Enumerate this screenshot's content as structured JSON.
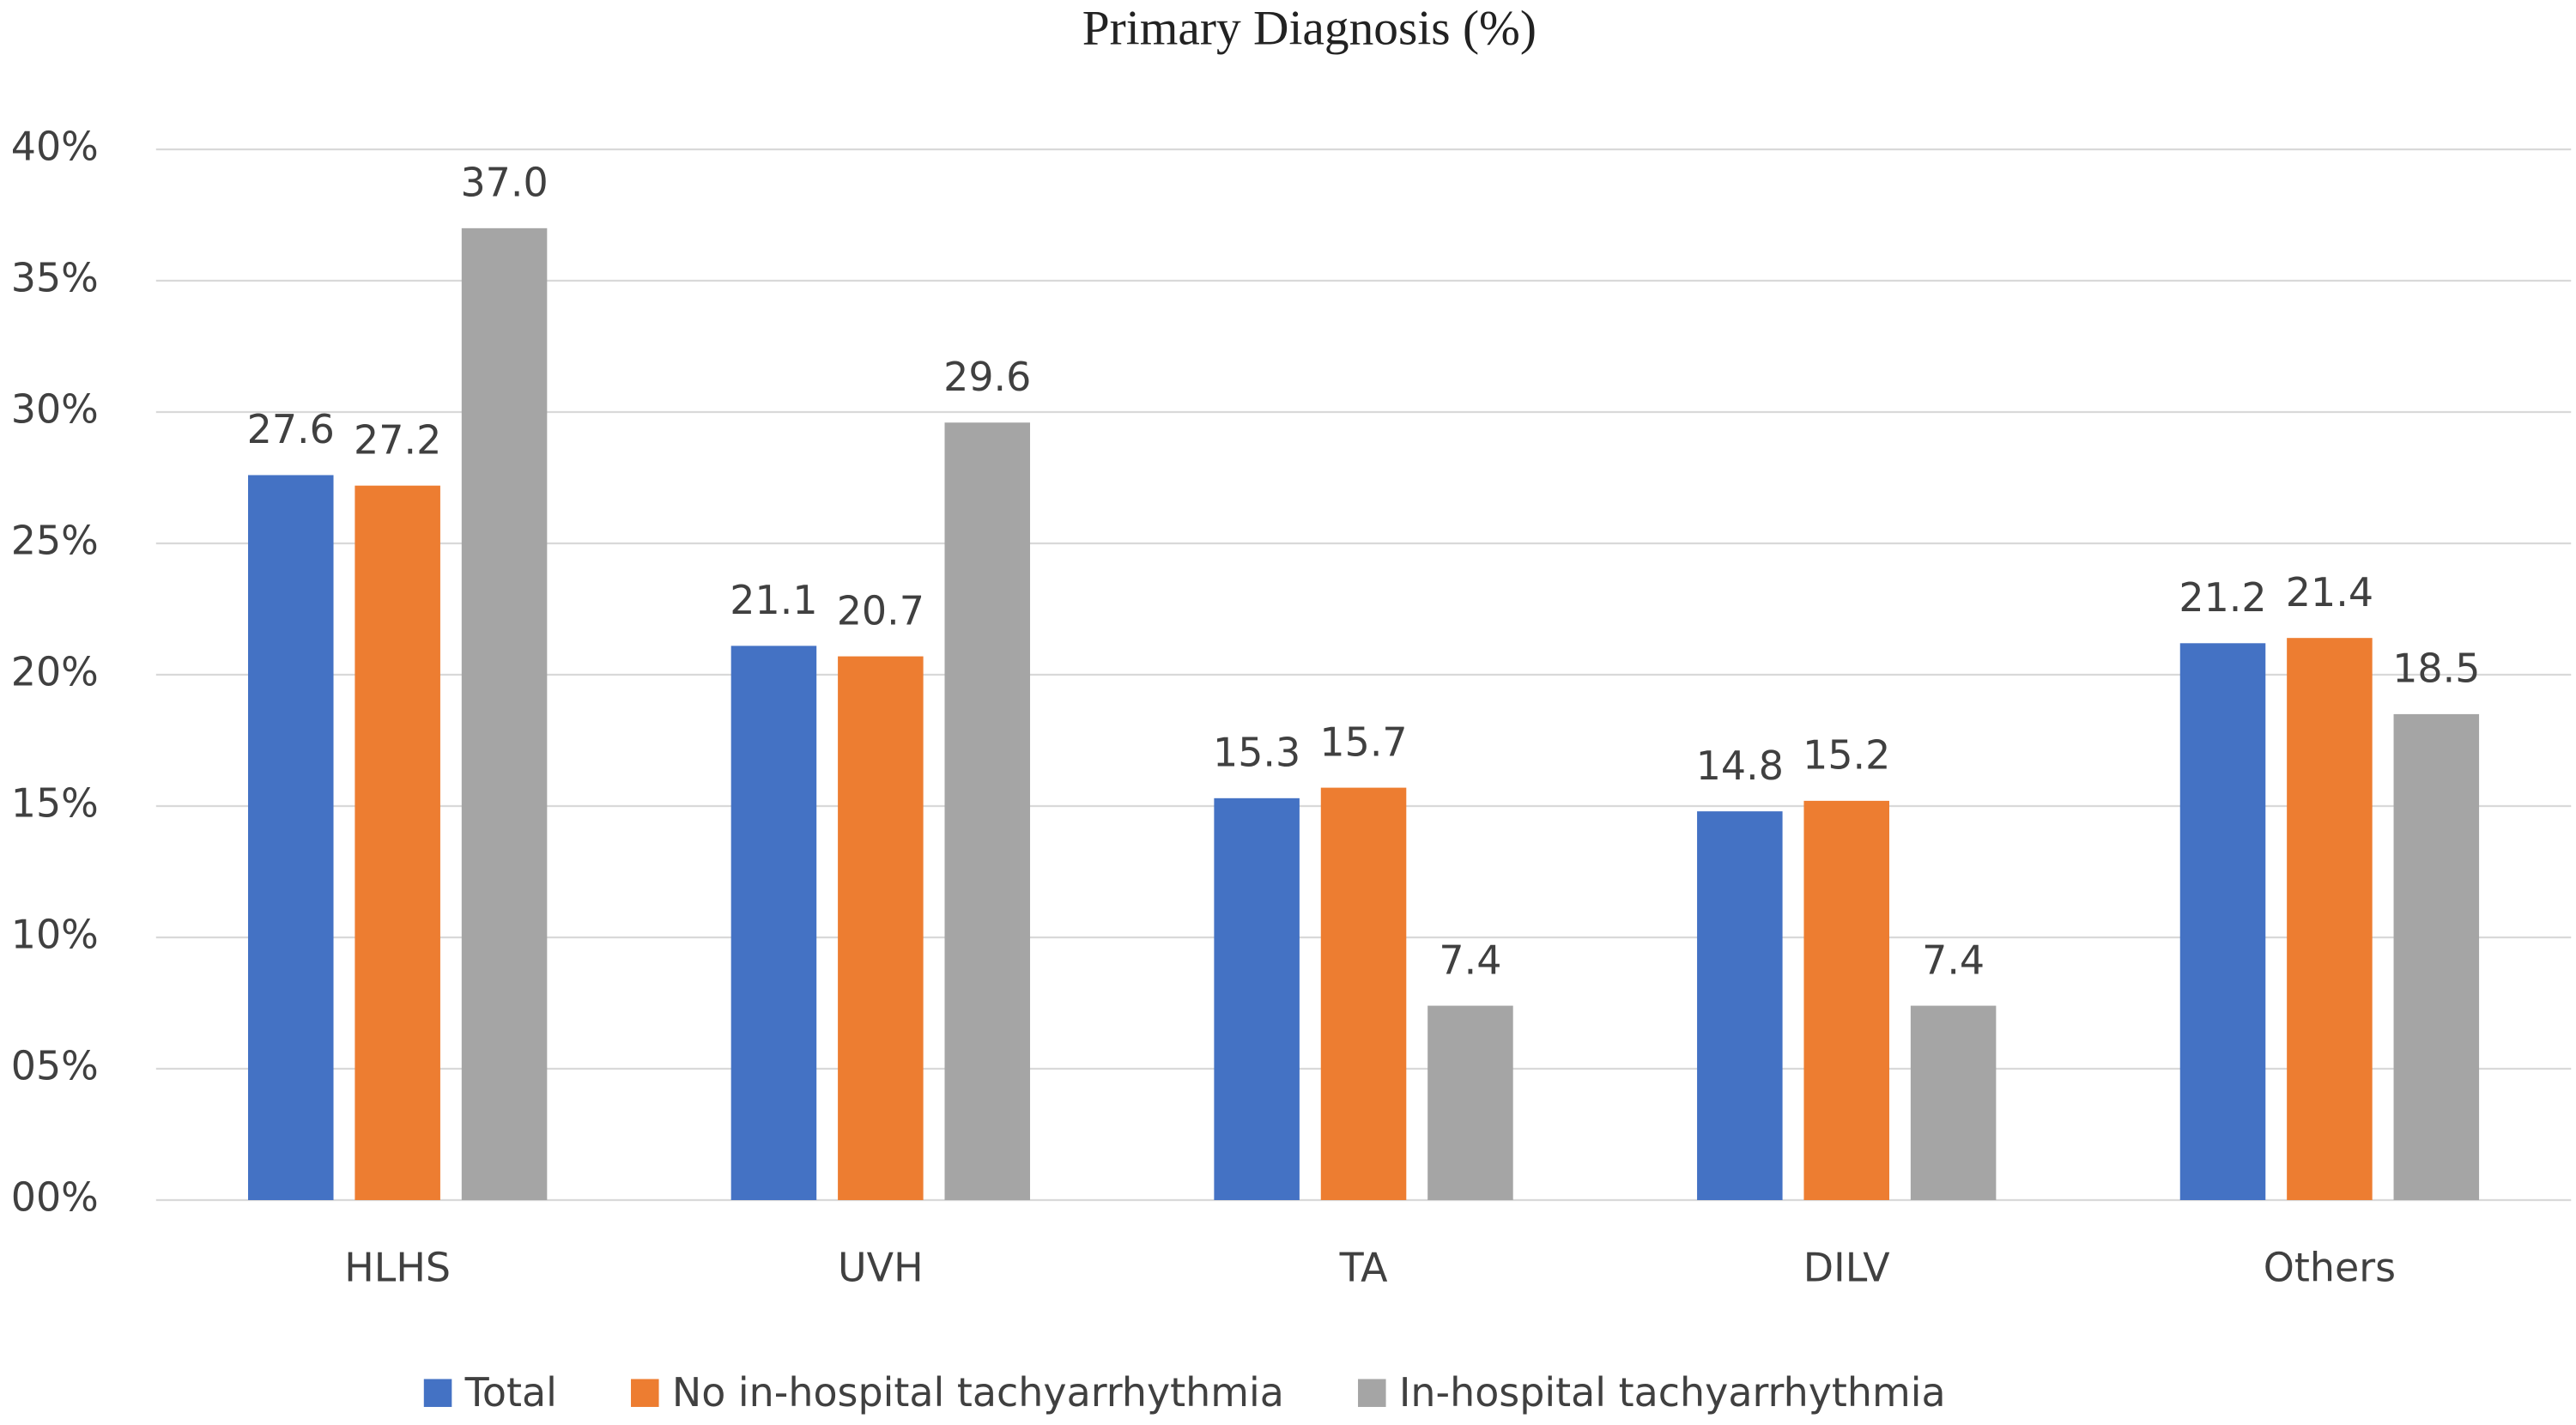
{
  "chart_data": {
    "type": "bar",
    "title": "Primary Diagnosis (%)",
    "categories": [
      "HLHS",
      "UVH",
      "TA",
      "DILV",
      "Others"
    ],
    "series": [
      {
        "name": "Total",
        "color": "#4472c4",
        "values": [
          27.6,
          21.1,
          15.3,
          14.8,
          21.2
        ],
        "value_labels": [
          "27.6",
          "21.1",
          "15.3",
          "14.8",
          "21.2"
        ]
      },
      {
        "name": "No in-hospital tachyarrhythmia",
        "color": "#ed7d31",
        "values": [
          27.2,
          20.7,
          15.7,
          15.2,
          21.4
        ],
        "value_labels": [
          "27.2",
          "20.7",
          "15.7",
          "15.2",
          "21.4"
        ]
      },
      {
        "name": "In-hospital tachyarrhythmia",
        "color": "#a5a5a5",
        "values": [
          37.0,
          29.6,
          7.4,
          7.4,
          18.5
        ],
        "value_labels": [
          "37.0",
          "29.6",
          "7.4",
          "7.4",
          "18.5"
        ]
      }
    ],
    "ylim": [
      0,
      40
    ],
    "yticks": [
      {
        "value": 0,
        "label": "00%"
      },
      {
        "value": 5,
        "label": "05%"
      },
      {
        "value": 10,
        "label": "10%"
      },
      {
        "value": 15,
        "label": "15%"
      },
      {
        "value": 20,
        "label": "20%"
      },
      {
        "value": 25,
        "label": "25%"
      },
      {
        "value": 30,
        "label": "30%"
      },
      {
        "value": 35,
        "label": "35%"
      },
      {
        "value": 40,
        "label": "40%"
      }
    ],
    "grid": true,
    "legend": "bottom"
  }
}
